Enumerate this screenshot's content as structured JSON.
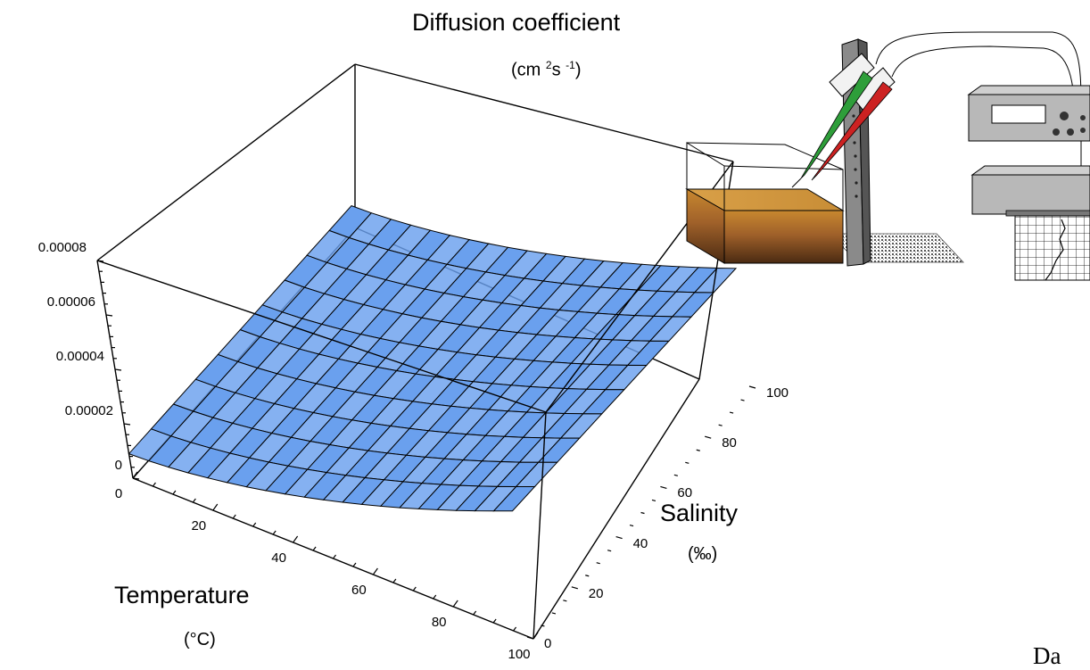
{
  "chart_data": {
    "type": "surface3d",
    "title": "Diffusion coefficient",
    "zunit": {
      "pre": "(cm ",
      "exp1": "2",
      "mid": "s ",
      "exp2": "-1",
      "post": ")"
    },
    "xlabel": "Temperature",
    "xunit": "(°C)",
    "ylabel": "Salinity",
    "yunit": "(‰)",
    "xlim": [
      0,
      100
    ],
    "ylim": [
      0,
      100
    ],
    "zlim": [
      0,
      8e-05
    ],
    "xticks": [
      "0",
      "20",
      "40",
      "60",
      "80",
      "100"
    ],
    "yticks": [
      "0",
      "20",
      "40",
      "60",
      "80",
      "100"
    ],
    "zticks": [
      "0",
      "0.00002",
      "0.00004",
      "0.00006",
      "0.00008"
    ],
    "x_grid": [
      0,
      5,
      10,
      15,
      20,
      25,
      30,
      35,
      40,
      45,
      50,
      55,
      60,
      65,
      70,
      75,
      80,
      85,
      90,
      95,
      100
    ],
    "y_grid": [
      0,
      10,
      20,
      30,
      40,
      50,
      60,
      70,
      80,
      90,
      100
    ],
    "z_corners": {
      "t0_s0": 9e-06,
      "t100_s0": 4.7e-05,
      "t0_s100": 8e-06,
      "t100_s100": 4.4e-05
    },
    "surface_color": "#6aa0ee"
  },
  "footer_fragment": "Da"
}
